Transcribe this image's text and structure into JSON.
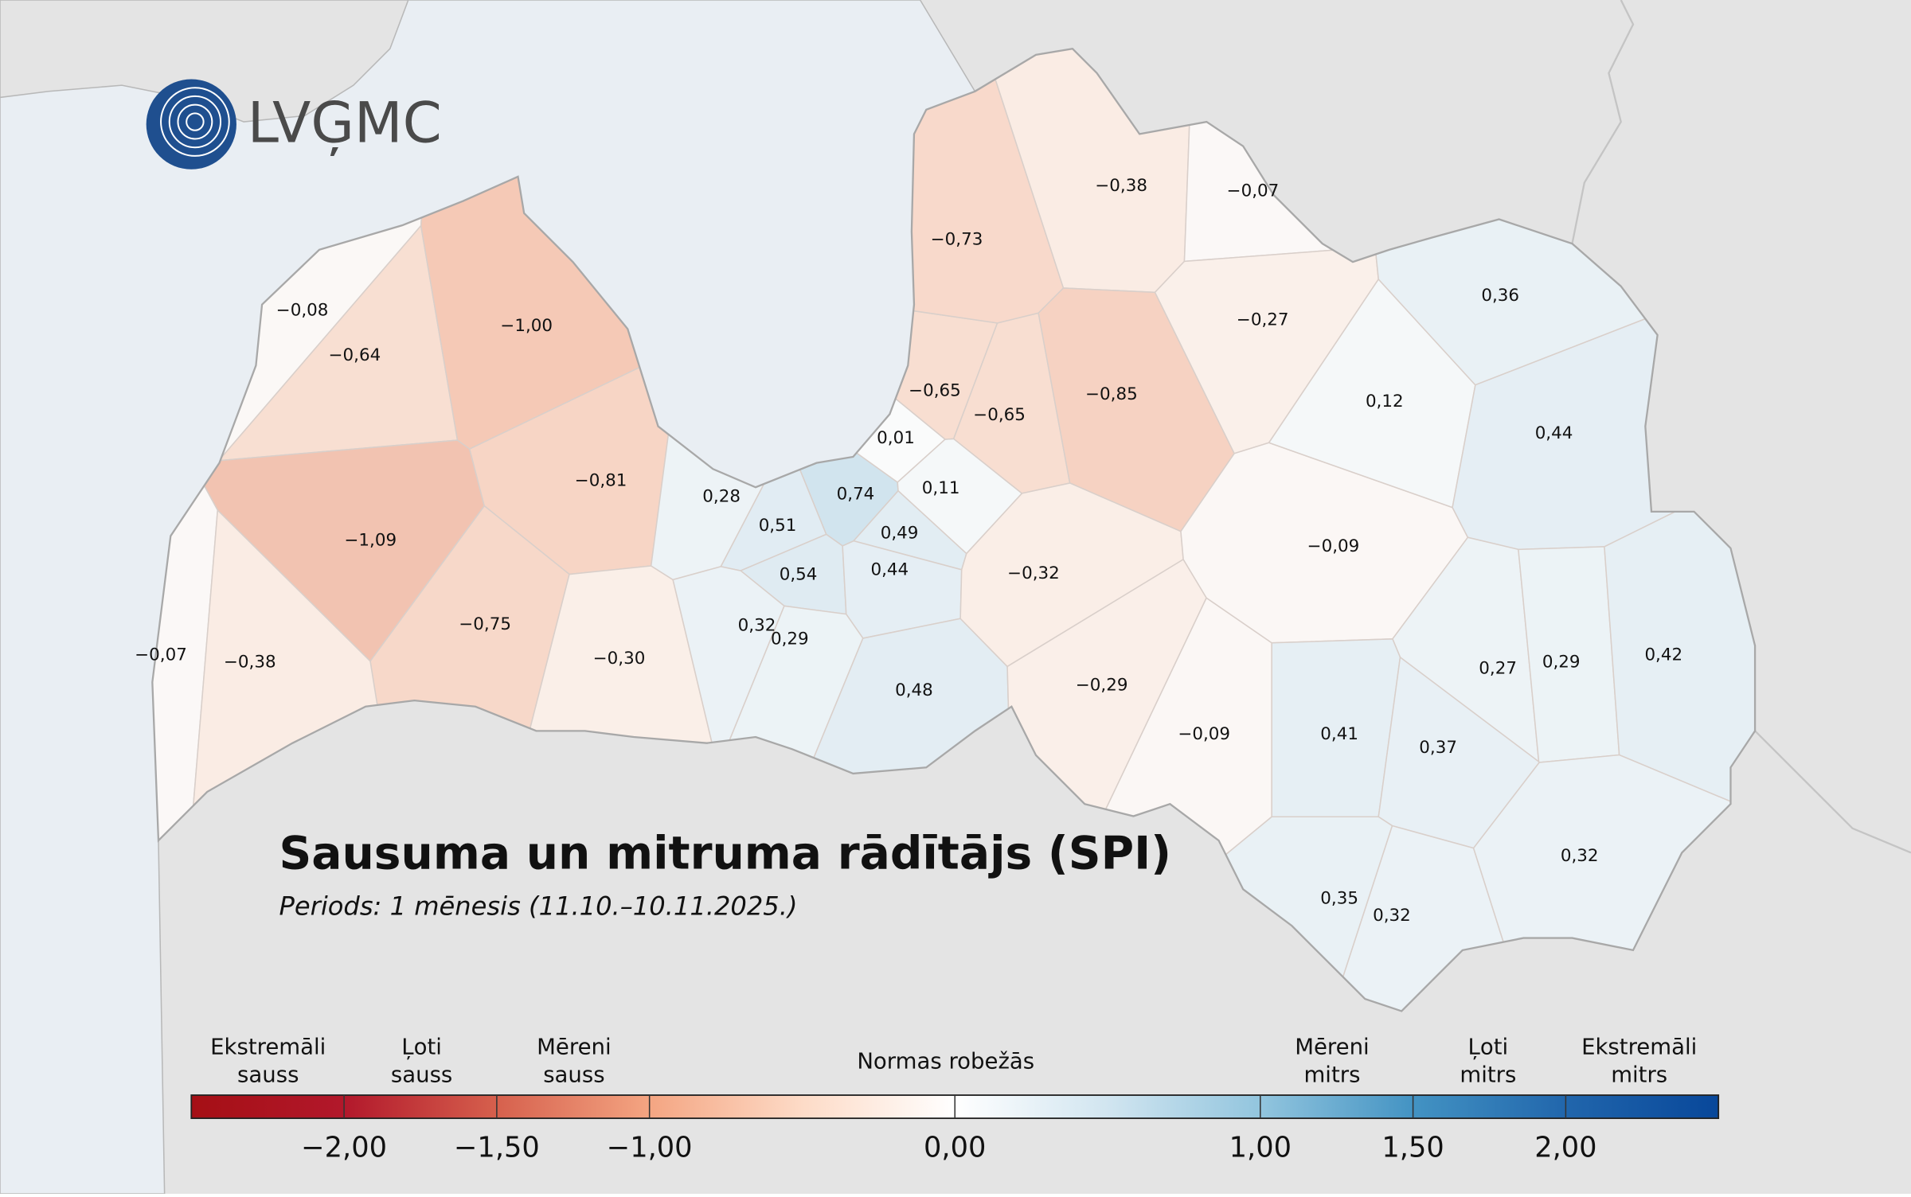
{
  "logo": "LVĢMC",
  "title": "Sausuma un mitruma rādītājs (SPI)",
  "subtitle": "Periods: 1 mēnesis (11.10.–10.11.2025.)",
  "regions": [
    {
      "value": -0.08,
      "label": "−0,08"
    },
    {
      "value": -0.64,
      "label": "−0,64"
    },
    {
      "value": -1.0,
      "label": "−1,00"
    },
    {
      "value": -1.09,
      "label": "−1,09"
    },
    {
      "value": -0.81,
      "label": "−0,81"
    },
    {
      "value": -0.75,
      "label": "−0,75"
    },
    {
      "value": -0.3,
      "label": "−0,30"
    },
    {
      "value": -0.07,
      "label": "−0,07"
    },
    {
      "value": -0.38,
      "label": "−0,38"
    },
    {
      "value": 0.28,
      "label": "0,28"
    },
    {
      "value": 0.51,
      "label": "0,51"
    },
    {
      "value": 0.74,
      "label": "0,74"
    },
    {
      "value": 0.01,
      "label": "0,01"
    },
    {
      "value": 0.11,
      "label": "0,11"
    },
    {
      "value": 0.49,
      "label": "0,49"
    },
    {
      "value": 0.54,
      "label": "0,54"
    },
    {
      "value": 0.44,
      "label": "0,44"
    },
    {
      "value": 0.32,
      "label": "0,32"
    },
    {
      "value": 0.29,
      "label": "0,29"
    },
    {
      "value": 0.48,
      "label": "0,48"
    },
    {
      "value": -0.65,
      "label": "−0,65"
    },
    {
      "value": -0.65,
      "label": "−0,65"
    },
    {
      "value": -0.73,
      "label": "−0,73"
    },
    {
      "value": -0.38,
      "label": "−0,38"
    },
    {
      "value": -0.07,
      "label": "−0,07"
    },
    {
      "value": -0.85,
      "label": "−0,85"
    },
    {
      "value": -0.27,
      "label": "−0,27"
    },
    {
      "value": -0.32,
      "label": "−0,32"
    },
    {
      "value": -0.29,
      "label": "−0,29"
    },
    {
      "value": -0.09,
      "label": "−0,09"
    },
    {
      "value": -0.09,
      "label": "−0,09"
    },
    {
      "value": 0.12,
      "label": "0,12"
    },
    {
      "value": 0.36,
      "label": "0,36"
    },
    {
      "value": 0.44,
      "label": "0,44"
    },
    {
      "value": 0.27,
      "label": "0,27"
    },
    {
      "value": 0.29,
      "label": "0,29"
    },
    {
      "value": 0.42,
      "label": "0,42"
    },
    {
      "value": 0.41,
      "label": "0,41"
    },
    {
      "value": 0.37,
      "label": "0,37"
    },
    {
      "value": 0.35,
      "label": "0,35"
    },
    {
      "value": 0.32,
      "label": "0,32"
    },
    {
      "value": 0.32,
      "label": "0,32"
    }
  ],
  "legend": {
    "lim": [
      -2.5,
      2.5
    ],
    "colors": [
      "#a50f15",
      "#b2182b",
      "#d6604d",
      "#f4a582",
      "#fddbc7",
      "#ffffff",
      "#d1e5f0",
      "#92c5de",
      "#4393c3",
      "#2166ac",
      "#08479a"
    ],
    "ticks": [
      {
        "value": -2,
        "label": "−2,00"
      },
      {
        "value": -1.5,
        "label": "−1,50"
      },
      {
        "value": -1,
        "label": "−1,00"
      },
      {
        "value": 0,
        "label": "0,00"
      },
      {
        "value": 1,
        "label": "1,00"
      },
      {
        "value": 1.5,
        "label": "1,50"
      },
      {
        "value": 2,
        "label": "2,00"
      }
    ],
    "categories": [
      [
        "Ekstremāli",
        "sauss"
      ],
      [
        "Ļoti",
        "sauss"
      ],
      [
        "Mēreni",
        "sauss"
      ],
      [
        "Normas robežās"
      ],
      [
        "Mēreni",
        "mitrs"
      ],
      [
        "Ļoti",
        "mitrs"
      ],
      [
        "Ekstremāli",
        "mitrs"
      ]
    ]
  }
}
